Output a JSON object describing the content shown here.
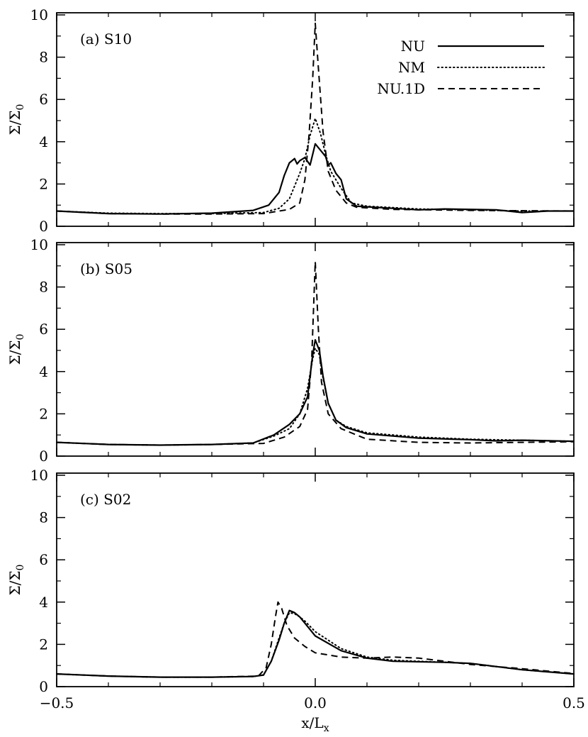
{
  "chart_data": {
    "type": "line",
    "xlabel": "x/L",
    "xlabel_sub": "x",
    "ylabel": "Σ/Σ",
    "ylabel_sub": "0",
    "xlim": [
      -0.5,
      0.5
    ],
    "ylim": [
      0,
      10
    ],
    "x_ticks": [
      "−0.5",
      "0.0",
      "0.5"
    ],
    "x_tick_values": [
      -0.5,
      0.0,
      0.5
    ],
    "y_ticks": [
      "0",
      "2",
      "4",
      "6",
      "8",
      "10"
    ],
    "y_tick_values": [
      0,
      2,
      4,
      6,
      8,
      10
    ],
    "legend": {
      "placement": "top-right",
      "entries": [
        {
          "name": "NU",
          "style": "solid"
        },
        {
          "name": "NM",
          "style": "dotted"
        },
        {
          "name": "NU.1D",
          "style": "dashed"
        }
      ]
    },
    "panels": [
      {
        "label": "(a) S10",
        "series": [
          {
            "name": "NU",
            "style": "solid",
            "points": [
              [
                -0.5,
                0.72
              ],
              [
                -0.4,
                0.6
              ],
              [
                -0.3,
                0.58
              ],
              [
                -0.2,
                0.62
              ],
              [
                -0.12,
                0.75
              ],
              [
                -0.09,
                1.0
              ],
              [
                -0.07,
                1.6
              ],
              [
                -0.06,
                2.4
              ],
              [
                -0.05,
                3.0
              ],
              [
                -0.04,
                3.2
              ],
              [
                -0.035,
                2.95
              ],
              [
                -0.03,
                3.1
              ],
              [
                -0.02,
                3.25
              ],
              [
                -0.01,
                2.9
              ],
              [
                0.0,
                3.9
              ],
              [
                0.01,
                3.6
              ],
              [
                0.02,
                3.3
              ],
              [
                0.025,
                2.9
              ],
              [
                0.03,
                3.0
              ],
              [
                0.04,
                2.5
              ],
              [
                0.05,
                2.2
              ],
              [
                0.06,
                1.3
              ],
              [
                0.08,
                0.95
              ],
              [
                0.15,
                0.85
              ],
              [
                0.2,
                0.78
              ],
              [
                0.25,
                0.82
              ],
              [
                0.3,
                0.8
              ],
              [
                0.35,
                0.78
              ],
              [
                0.4,
                0.65
              ],
              [
                0.45,
                0.72
              ],
              [
                0.5,
                0.72
              ]
            ]
          },
          {
            "name": "NM",
            "style": "dotted",
            "points": [
              [
                -0.5,
                0.72
              ],
              [
                -0.4,
                0.62
              ],
              [
                -0.3,
                0.6
              ],
              [
                -0.2,
                0.6
              ],
              [
                -0.1,
                0.65
              ],
              [
                -0.07,
                0.85
              ],
              [
                -0.05,
                1.3
              ],
              [
                -0.03,
                2.5
              ],
              [
                -0.02,
                3.2
              ],
              [
                -0.01,
                4.3
              ],
              [
                0.0,
                5.1
              ],
              [
                0.01,
                4.4
              ],
              [
                0.02,
                3.4
              ],
              [
                0.03,
                2.6
              ],
              [
                0.05,
                1.8
              ],
              [
                0.07,
                1.1
              ],
              [
                0.1,
                0.95
              ],
              [
                0.2,
                0.82
              ],
              [
                0.3,
                0.78
              ],
              [
                0.4,
                0.72
              ],
              [
                0.5,
                0.72
              ]
            ]
          },
          {
            "name": "NU.1D",
            "style": "dashed",
            "points": [
              [
                -0.5,
                0.72
              ],
              [
                -0.4,
                0.6
              ],
              [
                -0.3,
                0.58
              ],
              [
                -0.2,
                0.58
              ],
              [
                -0.1,
                0.6
              ],
              [
                -0.05,
                0.8
              ],
              [
                -0.03,
                1.1
              ],
              [
                -0.02,
                2.2
              ],
              [
                -0.012,
                4.3
              ],
              [
                -0.005,
                7.0
              ],
              [
                0.0,
                9.6
              ],
              [
                0.006,
                7.5
              ],
              [
                0.015,
                4.5
              ],
              [
                0.025,
                2.6
              ],
              [
                0.04,
                1.7
              ],
              [
                0.06,
                1.1
              ],
              [
                0.08,
                0.9
              ],
              [
                0.15,
                0.8
              ],
              [
                0.3,
                0.75
              ],
              [
                0.5,
                0.72
              ]
            ]
          }
        ]
      },
      {
        "label": "(b) S05",
        "series": [
          {
            "name": "NU",
            "style": "solid",
            "points": [
              [
                -0.5,
                0.65
              ],
              [
                -0.4,
                0.55
              ],
              [
                -0.3,
                0.52
              ],
              [
                -0.2,
                0.55
              ],
              [
                -0.12,
                0.62
              ],
              [
                -0.08,
                1.0
              ],
              [
                -0.05,
                1.5
              ],
              [
                -0.03,
                2.0
              ],
              [
                -0.015,
                2.8
              ],
              [
                -0.005,
                4.8
              ],
              [
                0.0,
                5.5
              ],
              [
                0.008,
                5.0
              ],
              [
                0.015,
                3.8
              ],
              [
                0.025,
                2.5
              ],
              [
                0.04,
                1.7
              ],
              [
                0.06,
                1.35
              ],
              [
                0.1,
                1.05
              ],
              [
                0.2,
                0.85
              ],
              [
                0.3,
                0.78
              ],
              [
                0.35,
                0.72
              ],
              [
                0.4,
                0.75
              ],
              [
                0.5,
                0.7
              ]
            ]
          },
          {
            "name": "NM",
            "style": "dotted",
            "points": [
              [
                -0.5,
                0.65
              ],
              [
                -0.4,
                0.55
              ],
              [
                -0.3,
                0.52
              ],
              [
                -0.2,
                0.55
              ],
              [
                -0.12,
                0.62
              ],
              [
                -0.08,
                0.95
              ],
              [
                -0.05,
                1.3
              ],
              [
                -0.03,
                2.0
              ],
              [
                -0.015,
                3.2
              ],
              [
                -0.005,
                4.6
              ],
              [
                0.0,
                5.1
              ],
              [
                0.008,
                4.8
              ],
              [
                0.015,
                3.7
              ],
              [
                0.025,
                2.5
              ],
              [
                0.04,
                1.7
              ],
              [
                0.06,
                1.4
              ],
              [
                0.1,
                1.1
              ],
              [
                0.2,
                0.9
              ],
              [
                0.3,
                0.8
              ],
              [
                0.4,
                0.75
              ],
              [
                0.5,
                0.7
              ]
            ]
          },
          {
            "name": "NU.1D",
            "style": "dashed",
            "points": [
              [
                -0.5,
                0.65
              ],
              [
                -0.4,
                0.55
              ],
              [
                -0.3,
                0.52
              ],
              [
                -0.2,
                0.55
              ],
              [
                -0.1,
                0.6
              ],
              [
                -0.06,
                0.9
              ],
              [
                -0.03,
                1.4
              ],
              [
                -0.015,
                2.2
              ],
              [
                -0.007,
                4.5
              ],
              [
                0.0,
                9.2
              ],
              [
                0.006,
                6.0
              ],
              [
                0.012,
                3.5
              ],
              [
                0.025,
                2.0
              ],
              [
                0.05,
                1.3
              ],
              [
                0.1,
                0.8
              ],
              [
                0.2,
                0.65
              ],
              [
                0.3,
                0.62
              ],
              [
                0.4,
                0.65
              ],
              [
                0.5,
                0.68
              ]
            ]
          }
        ]
      },
      {
        "label": "(c) S02",
        "series": [
          {
            "name": "NU",
            "style": "solid",
            "points": [
              [
                -0.5,
                0.6
              ],
              [
                -0.4,
                0.5
              ],
              [
                -0.3,
                0.45
              ],
              [
                -0.2,
                0.45
              ],
              [
                -0.12,
                0.48
              ],
              [
                -0.1,
                0.55
              ],
              [
                -0.085,
                1.2
              ],
              [
                -0.07,
                2.2
              ],
              [
                -0.06,
                3.0
              ],
              [
                -0.05,
                3.6
              ],
              [
                -0.04,
                3.5
              ],
              [
                -0.03,
                3.3
              ],
              [
                -0.02,
                3.0
              ],
              [
                0.0,
                2.4
              ],
              [
                0.05,
                1.7
              ],
              [
                0.1,
                1.35
              ],
              [
                0.15,
                1.2
              ],
              [
                0.25,
                1.15
              ],
              [
                0.3,
                1.1
              ],
              [
                0.4,
                0.8
              ],
              [
                0.5,
                0.6
              ]
            ]
          },
          {
            "name": "NM",
            "style": "dotted",
            "points": [
              [
                -0.5,
                0.6
              ],
              [
                -0.4,
                0.5
              ],
              [
                -0.3,
                0.45
              ],
              [
                -0.2,
                0.45
              ],
              [
                -0.12,
                0.48
              ],
              [
                -0.1,
                0.55
              ],
              [
                -0.085,
                1.2
              ],
              [
                -0.07,
                2.3
              ],
              [
                -0.06,
                3.0
              ],
              [
                -0.05,
                3.5
              ],
              [
                -0.04,
                3.45
              ],
              [
                -0.03,
                3.3
              ],
              [
                -0.02,
                3.1
              ],
              [
                0.0,
                2.6
              ],
              [
                0.05,
                1.8
              ],
              [
                0.1,
                1.4
              ],
              [
                0.15,
                1.25
              ],
              [
                0.25,
                1.15
              ],
              [
                0.3,
                1.1
              ],
              [
                0.4,
                0.8
              ],
              [
                0.5,
                0.6
              ]
            ]
          },
          {
            "name": "NU.1D",
            "style": "dashed",
            "points": [
              [
                -0.5,
                0.6
              ],
              [
                -0.4,
                0.5
              ],
              [
                -0.3,
                0.45
              ],
              [
                -0.2,
                0.45
              ],
              [
                -0.11,
                0.5
              ],
              [
                -0.095,
                0.9
              ],
              [
                -0.085,
                2.0
              ],
              [
                -0.077,
                3.3
              ],
              [
                -0.072,
                4.0
              ],
              [
                -0.065,
                3.7
              ],
              [
                -0.055,
                2.9
              ],
              [
                -0.04,
                2.3
              ],
              [
                -0.02,
                1.9
              ],
              [
                0.0,
                1.6
              ],
              [
                0.05,
                1.4
              ],
              [
                0.1,
                1.35
              ],
              [
                0.15,
                1.4
              ],
              [
                0.2,
                1.35
              ],
              [
                0.25,
                1.2
              ],
              [
                0.3,
                1.05
              ],
              [
                0.4,
                0.85
              ],
              [
                0.5,
                0.62
              ]
            ]
          }
        ]
      }
    ]
  }
}
